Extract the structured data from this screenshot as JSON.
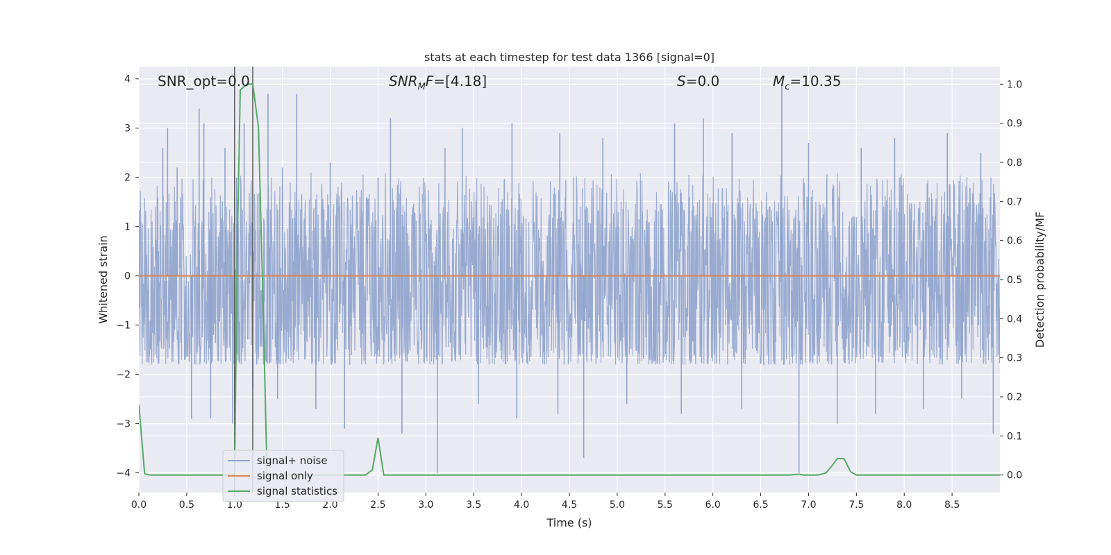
{
  "chart_data": {
    "type": "line",
    "title": "stats at each timestep for test data 1366 [signal=0]",
    "xlabel": "Time (s)",
    "ylabel": "Whitened strain",
    "y2label": "Detection probability/MF",
    "xlim": [
      0.0,
      9.0
    ],
    "ylim": [
      -4.4,
      4.25
    ],
    "y2lim": [
      -0.045,
      1.045
    ],
    "x_ticks": [
      "0.0",
      "0.5",
      "1.0",
      "1.5",
      "2.0",
      "2.5",
      "3.0",
      "3.5",
      "4.0",
      "4.5",
      "5.0",
      "5.5",
      "6.0",
      "6.5",
      "7.0",
      "7.5",
      "8.0",
      "8.5"
    ],
    "y_ticks": [
      "4",
      "3",
      "2",
      "1",
      "0",
      "−1",
      "−2",
      "−3",
      "−4"
    ],
    "y2_ticks": [
      "1.0",
      "0.9",
      "0.8",
      "0.7",
      "0.6",
      "0.5",
      "0.4",
      "0.3",
      "0.2",
      "0.1",
      "0.0"
    ],
    "annotations": [
      {
        "text": "SNR_opt=0.0",
        "x": 0.2,
        "y": 4.0
      },
      {
        "text": "SNR_MF=[4.18]",
        "x": 2.6,
        "y": 4.0
      },
      {
        "text": "S=0.0",
        "x": 5.6,
        "y": 4.0
      },
      {
        "text": "M_c=10.35",
        "x": 6.6,
        "y": 4.0
      }
    ],
    "vertical_lines": [
      1.0,
      1.19
    ],
    "legend": {
      "placement": "lower-left",
      "entries": [
        "signal+ noise",
        "signal only",
        "signal statistics"
      ]
    },
    "grid": true,
    "series": [
      {
        "name": "signal+ noise",
        "kind": "noise-envelope",
        "color": "#8fa3cc",
        "x_range": [
          0.0,
          9.0
        ],
        "band": [
          -1.75,
          1.65
        ],
        "spikes": [
          [
            0.25,
            2.6
          ],
          [
            0.3,
            3.0
          ],
          [
            0.4,
            2.2
          ],
          [
            0.63,
            3.4
          ],
          [
            0.68,
            3.1
          ],
          [
            0.9,
            2.6
          ],
          [
            1.02,
            2.0
          ],
          [
            1.1,
            3.1
          ],
          [
            1.35,
            3.7
          ],
          [
            1.5,
            2.2
          ],
          [
            1.65,
            3.7
          ],
          [
            2.0,
            2.3
          ],
          [
            2.5,
            2.0
          ],
          [
            2.63,
            3.2
          ],
          [
            3.2,
            2.6
          ],
          [
            3.38,
            3.0
          ],
          [
            3.9,
            3.1
          ],
          [
            4.4,
            2.9
          ],
          [
            4.85,
            2.8
          ],
          [
            5.6,
            3.1
          ],
          [
            5.9,
            3.2
          ],
          [
            6.2,
            2.9
          ],
          [
            6.72,
            3.9
          ],
          [
            7.0,
            2.7
          ],
          [
            7.55,
            2.6
          ],
          [
            7.9,
            2.8
          ],
          [
            8.45,
            2.9
          ],
          [
            8.8,
            2.5
          ],
          [
            0.55,
            -2.9
          ],
          [
            0.75,
            -2.9
          ],
          [
            0.98,
            -3.0
          ],
          [
            1.19,
            -2.3
          ],
          [
            1.45,
            -2.5
          ],
          [
            1.85,
            -2.7
          ],
          [
            2.15,
            -3.1
          ],
          [
            2.75,
            -3.2
          ],
          [
            3.12,
            -4.0
          ],
          [
            3.55,
            -2.6
          ],
          [
            3.95,
            -2.9
          ],
          [
            4.38,
            -2.8
          ],
          [
            4.65,
            -3.7
          ],
          [
            5.1,
            -2.6
          ],
          [
            5.67,
            -2.8
          ],
          [
            6.3,
            -2.7
          ],
          [
            6.9,
            -4.0
          ],
          [
            7.3,
            -3.0
          ],
          [
            7.7,
            -2.8
          ],
          [
            8.2,
            -2.7
          ],
          [
            8.6,
            -2.5
          ],
          [
            8.93,
            -3.2
          ]
        ]
      },
      {
        "name": "signal only",
        "color": "#dd8452",
        "x": [
          0.0,
          9.0
        ],
        "y": [
          0.0,
          0.0
        ]
      },
      {
        "name": "signal statistics",
        "axis": "right",
        "color": "#55a868",
        "x": [
          0.0,
          0.06,
          0.12,
          0.2,
          0.3,
          0.6,
          0.9,
          0.97,
          1.0,
          1.03,
          1.06,
          1.13,
          1.19,
          1.25,
          1.3,
          1.34,
          1.4,
          2.0,
          2.37,
          2.44,
          2.5,
          2.56,
          2.62,
          3.5,
          5.0,
          6.5,
          6.8,
          6.9,
          6.95,
          7.1,
          7.18,
          7.24,
          7.3,
          7.37,
          7.44,
          7.5,
          8.0,
          9.0
        ],
        "y": [
          0.18,
          0.003,
          0.0,
          0.0,
          0.0,
          0.0,
          0.0,
          0.0,
          0.0,
          0.6,
          0.985,
          1.0,
          1.0,
          0.89,
          0.42,
          0.0,
          0.0,
          0.0,
          0.0,
          0.013,
          0.095,
          0.0,
          0.0,
          0.0,
          0.0,
          0.0,
          0.0,
          0.002,
          0.0,
          0.0,
          0.005,
          0.022,
          0.042,
          0.042,
          0.008,
          0.0,
          0.0,
          0.0
        ]
      }
    ]
  },
  "colors": {
    "plot_background": "#eaeaf2",
    "grid": "#ffffff",
    "vertical_line": "#595959",
    "legend_background": "#eaeaf2"
  }
}
